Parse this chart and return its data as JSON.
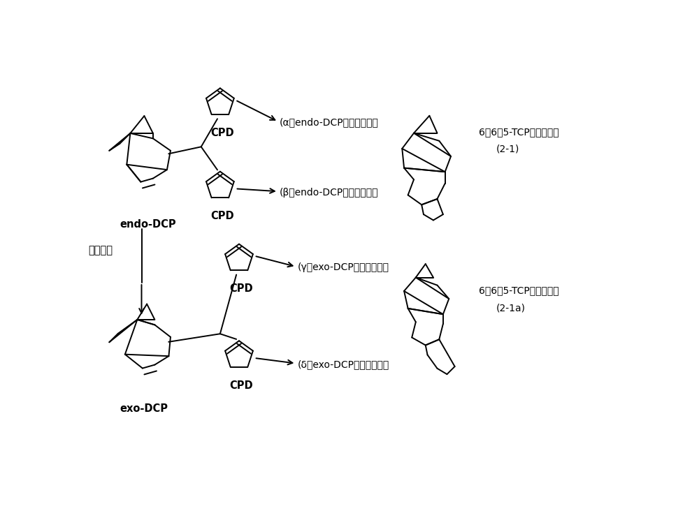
{
  "bg_color": "#ffffff",
  "line_color": "#000000",
  "labels": {
    "endo_dcp": "endo-DCP",
    "exo_dcp": "exo-DCP",
    "cpd": "CPD",
    "alpha": "(α）endo-DCP的内型加成物",
    "beta": "(β）endo-DCP的外型加成物",
    "gamma": "(γ）exo-DCP的内型加成物",
    "delta": "(δ）exo-DCP的外型加成物",
    "stereo": "立体转换",
    "tcp_endo": "6，6，5-TCP内型异构体",
    "tcp_endo_num": "(2-1)",
    "tcp_exo": "6，6，5-TCP外型异构体",
    "tcp_exo_num": "(2-1a)"
  }
}
